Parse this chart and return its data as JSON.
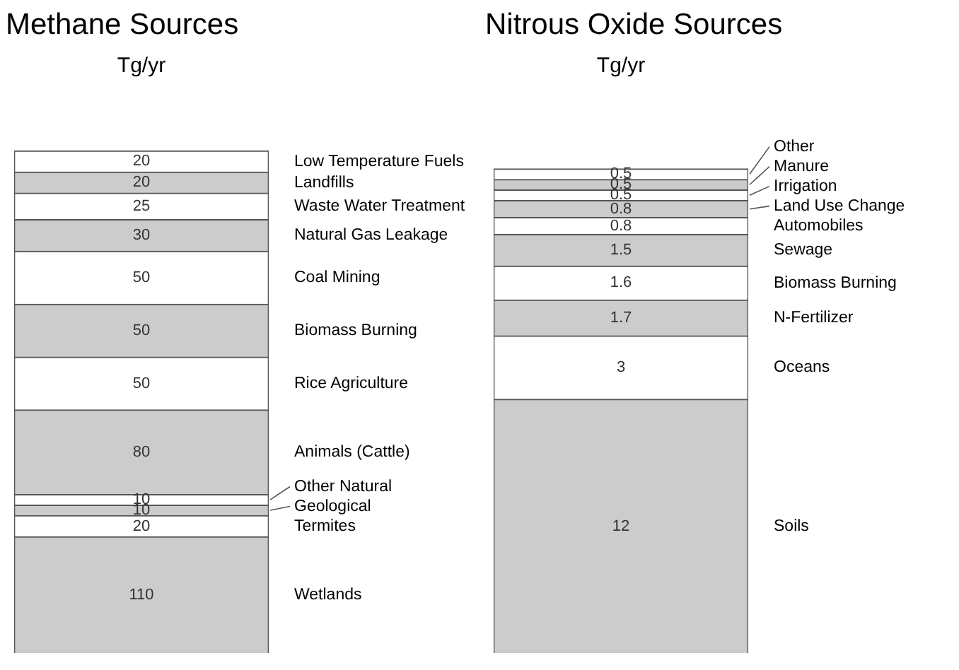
{
  "chart_data": [
    {
      "type": "bar",
      "title": "Methane Sources",
      "subtitle": "Tg/yr",
      "categories": [
        null
      ],
      "stacked": true,
      "data_labels": true,
      "tick_labels": false,
      "grid": false,
      "series": [
        {
          "name": "Wetlands",
          "color": "#cccccc",
          "values": [
            110
          ]
        },
        {
          "name": "Termites",
          "color": "#ffffff",
          "values": [
            20
          ]
        },
        {
          "name": "Geological",
          "color": "#cccccc",
          "values": [
            10
          ]
        },
        {
          "name": "Other Natural",
          "color": "#ffffff",
          "values": [
            10
          ]
        },
        {
          "name": "Animals (Cattle)",
          "color": "#cccccc",
          "values": [
            80
          ]
        },
        {
          "name": "Rice Agriculture",
          "color": "#ffffff",
          "values": [
            50
          ]
        },
        {
          "name": "Biomass Burning",
          "color": "#cccccc",
          "values": [
            50
          ]
        },
        {
          "name": "Coal Mining",
          "color": "#ffffff",
          "values": [
            50
          ]
        },
        {
          "name": "Natural Gas Leakage",
          "color": "#cccccc",
          "values": [
            30
          ]
        },
        {
          "name": "Waste Water Treatment",
          "color": "#ffffff",
          "values": [
            25
          ]
        },
        {
          "name": "Landfills",
          "color": "#cccccc",
          "values": [
            20
          ]
        },
        {
          "name": "Low Temperature Fuels",
          "color": "#ffffff",
          "values": [
            20
          ]
        }
      ]
    },
    {
      "type": "bar",
      "title": "Nitrous Oxide Sources",
      "subtitle": "Tg/yr",
      "categories": [
        null
      ],
      "stacked": true,
      "data_labels": true,
      "tick_labels": false,
      "grid": false,
      "series": [
        {
          "name": "Soils",
          "color": "#cccccc",
          "values": [
            12
          ]
        },
        {
          "name": "Oceans",
          "color": "#ffffff",
          "values": [
            3
          ]
        },
        {
          "name": "N-Fertilizer",
          "color": "#cccccc",
          "values": [
            1.7
          ]
        },
        {
          "name": "Biomass Burning",
          "color": "#ffffff",
          "values": [
            1.6
          ]
        },
        {
          "name": "Sewage",
          "color": "#cccccc",
          "values": [
            1.5
          ]
        },
        {
          "name": "Automobiles",
          "color": "#ffffff",
          "values": [
            0.8
          ]
        },
        {
          "name": "Land Use Change",
          "color": "#cccccc",
          "values": [
            0.8
          ]
        },
        {
          "name": "Irrigation",
          "color": "#ffffff",
          "values": [
            0.5
          ]
        },
        {
          "name": "Manure",
          "color": "#cccccc",
          "values": [
            0.5
          ]
        },
        {
          "name": "Other",
          "color": "#ffffff",
          "values": [
            0.5
          ]
        }
      ]
    }
  ]
}
